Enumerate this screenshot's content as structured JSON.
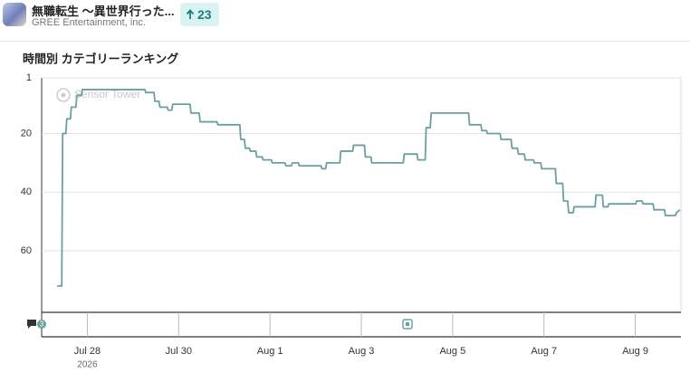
{
  "app": {
    "name": "無職転生 ～異世界行った...",
    "publisher": "GREE Entertainment, inc.",
    "rank_change": 23
  },
  "chart_data": {
    "type": "line",
    "title": "時間別 カテゴリーランキング",
    "watermark": "Sensor Tower",
    "x_year": "2026",
    "annotation": "3",
    "xlim": [
      0,
      14
    ],
    "xticks": [
      {
        "value": 1,
        "label": "Jul 28"
      },
      {
        "value": 3,
        "label": "Jul 30"
      },
      {
        "value": 5,
        "label": "Aug 1"
      },
      {
        "value": 7,
        "label": "Aug 3"
      },
      {
        "value": 9,
        "label": "Aug 5"
      },
      {
        "value": 11,
        "label": "Aug 7"
      },
      {
        "value": 13,
        "label": "Aug 9"
      }
    ],
    "ylim": [
      1,
      81
    ],
    "y_inverted": true,
    "yticks": [
      1,
      20,
      40,
      60
    ],
    "grid": true,
    "x": [
      0.34,
      0.44,
      0.46,
      0.53,
      0.55,
      0.63,
      0.65,
      0.75,
      0.77,
      0.87,
      0.89,
      2.26,
      2.28,
      2.46,
      2.48,
      2.57,
      2.59,
      2.75,
      2.77,
      2.85,
      2.87,
      3.25,
      3.27,
      3.45,
      3.47,
      3.84,
      3.86,
      4.34,
      4.36,
      4.44,
      4.46,
      4.55,
      4.57,
      4.69,
      4.71,
      4.83,
      4.85,
      5.03,
      5.05,
      5.33,
      5.35,
      5.47,
      5.49,
      5.62,
      5.64,
      6.12,
      6.14,
      6.22,
      6.24,
      6.53,
      6.55,
      6.81,
      6.83,
      7.07,
      7.09,
      7.21,
      7.23,
      7.92,
      7.94,
      8.22,
      8.24,
      8.4,
      8.42,
      8.51,
      8.53,
      9.35,
      9.37,
      9.62,
      9.64,
      9.74,
      9.76,
      10.04,
      10.06,
      10.28,
      10.3,
      10.42,
      10.44,
      10.57,
      10.59,
      10.77,
      10.79,
      10.93,
      10.95,
      11.25,
      11.27,
      11.41,
      11.43,
      11.52,
      11.54,
      11.64,
      11.66,
      12.12,
      12.14,
      12.28,
      12.3,
      12.4,
      12.42,
      12.67,
      12.69,
      13.01,
      13.03,
      13.15,
      13.17,
      13.39,
      13.41,
      13.64,
      13.66,
      13.88,
      13.9,
      13.98
    ],
    "series": [
      {
        "color": "#6b9fa2",
        "values": [
          72,
          72,
          20,
          20,
          15,
          15,
          11,
          11,
          7,
          7,
          5,
          5,
          6,
          6,
          9,
          9,
          11,
          11,
          12,
          12,
          10,
          10,
          13,
          13,
          16,
          16,
          17,
          17,
          22,
          22,
          25,
          25,
          26,
          26,
          28,
          28,
          29,
          29,
          30,
          30,
          31,
          31,
          30,
          30,
          31,
          31,
          32,
          32,
          30,
          30,
          26,
          26,
          24,
          24,
          28,
          28,
          30,
          30,
          27,
          27,
          29,
          29,
          18,
          18,
          13,
          13,
          17,
          17,
          19,
          19,
          20,
          20,
          22,
          22,
          25,
          25,
          27,
          27,
          29,
          29,
          30,
          30,
          32,
          32,
          37,
          37,
          43,
          43,
          47,
          47,
          45,
          45,
          41,
          41,
          45,
          45,
          44,
          44,
          44,
          44,
          43,
          43,
          44,
          44,
          46,
          46,
          48,
          48,
          47,
          46
        ]
      }
    ]
  }
}
